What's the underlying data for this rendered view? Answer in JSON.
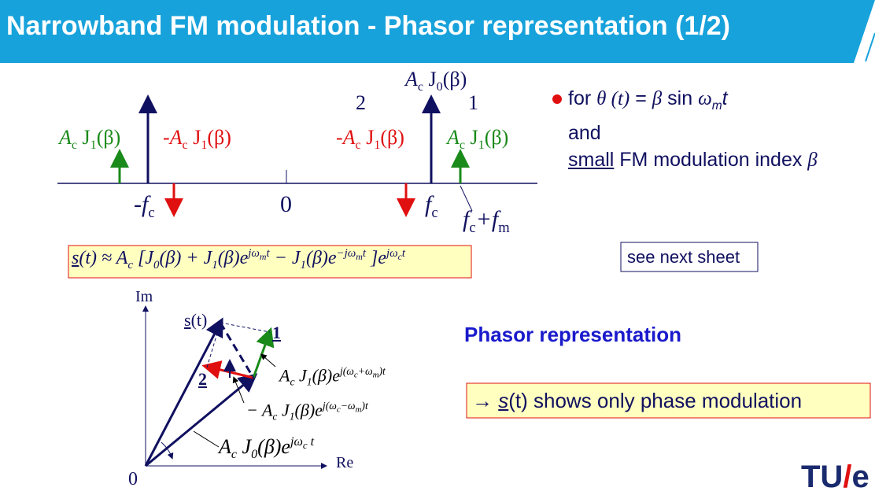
{
  "header": {
    "title": "Narrowband FM modulation - Phasor representation (1/2)",
    "logo": [
      "TU",
      "/",
      "e"
    ]
  },
  "spectrum": {
    "carrier_label": [
      "A",
      "c",
      " J",
      "0",
      "(β)"
    ],
    "left_green": [
      "A",
      "c",
      " J",
      "1",
      "(β)"
    ],
    "left_red": [
      "-A",
      "c",
      " J",
      "1",
      "(β)"
    ],
    "right_red": [
      "-A",
      "c",
      " J",
      "1",
      "(β)"
    ],
    "right_green": [
      "A",
      "c",
      " J",
      "1",
      "(β)"
    ],
    "numbers": [
      "2",
      "1"
    ],
    "axis": {
      "minus_fc": [
        "-f",
        "c"
      ],
      "zero": "0",
      "fc": [
        "f",
        "c"
      ],
      "fc_fm": [
        "f",
        "c",
        "+f",
        "m"
      ]
    }
  },
  "formula": [
    "s",
    "(t) ≈ A",
    "c",
    " [J",
    "0",
    "(β) + J",
    "1",
    "(β)e",
    "jω",
    "m",
    "t",
    " − J",
    "1",
    "(β)e",
    "−jω",
    "m",
    "t",
    " ]e",
    "jω",
    "c",
    "t"
  ],
  "bullet": {
    "line1": [
      "for ",
      "θ (t)",
      " = ",
      "β",
      " sin ",
      "ω",
      "m",
      "t"
    ],
    "line2": "and",
    "line3": [
      "small",
      " FM modulation index ",
      "β"
    ]
  },
  "note": "see next sheet",
  "phasor": {
    "title": "Phasor representation",
    "axes": {
      "im": "Im",
      "re": "Re",
      "origin": "0"
    },
    "st": [
      "s",
      "(t)"
    ],
    "one": "1",
    "two": "2",
    "p1": [
      "A",
      "c",
      " J",
      "1",
      "(β)e",
      "j(ω",
      "c",
      "+ω",
      "m",
      ")t"
    ],
    "p2": [
      "− A",
      "c",
      " J",
      "1",
      "(β)e",
      "j(ω",
      "c",
      "−ω",
      "m",
      ")t"
    ],
    "p0": [
      "A",
      "c",
      " J",
      "0",
      "(β)e",
      "jω",
      "c",
      " t"
    ]
  },
  "conclusion": [
    "→ ",
    "s",
    "(t)",
    " shows only phase modulation"
  ]
}
